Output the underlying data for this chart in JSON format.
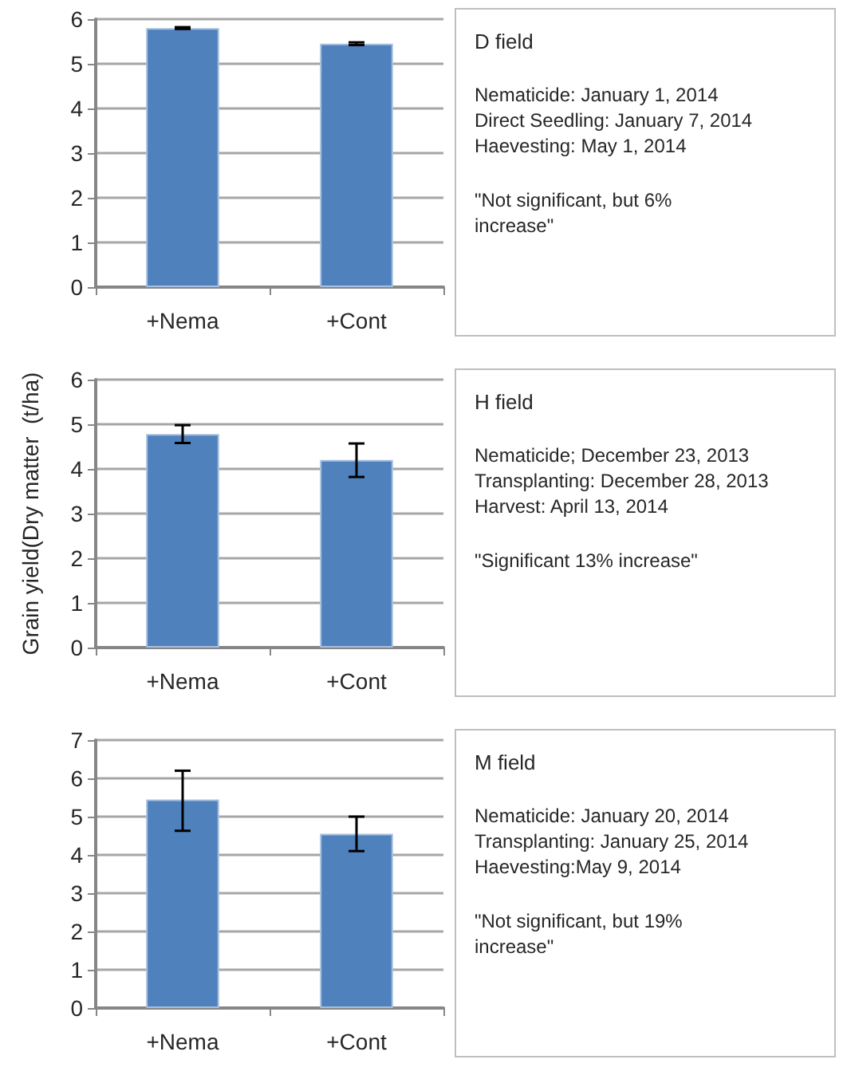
{
  "chart_data": [
    {
      "type": "bar",
      "categories": [
        "+Nema",
        "+Cont"
      ],
      "values": [
        5.8,
        5.45
      ],
      "errors": [
        [
          5.78,
          5.82
        ],
        [
          5.42,
          5.48
        ]
      ],
      "color": "#4f81bd",
      "ylim": [
        0,
        6
      ],
      "yticks": [
        0,
        1,
        2,
        3,
        4,
        5,
        6
      ],
      "grid": "y"
    },
    {
      "type": "other",
      "title": "D field",
      "annotations": [
        "Nematicide: January 1, 2014",
        "Direct Seedling: January 7, 2014",
        "Haevesting: May 1, 2014",
        "\"Not significant, but 6% increase\""
      ]
    },
    {
      "type": "bar",
      "ylabel": "Grain yield(Dry matter  (t/ha)",
      "categories": [
        "+Nema",
        "+Cont"
      ],
      "values": [
        4.78,
        4.2
      ],
      "errors": [
        [
          4.58,
          4.98
        ],
        [
          3.82,
          4.57
        ]
      ],
      "color": "#4f81bd",
      "ylim": [
        0,
        6
      ],
      "yticks": [
        0,
        1,
        2,
        3,
        4,
        5,
        6
      ],
      "grid": "y"
    },
    {
      "type": "other",
      "title": "H field",
      "annotations": [
        "Nematicide; December 23, 2013",
        "Transplanting: December 28, 2013",
        "Harvest: April 13, 2014",
        "\"Significant 13% increase\""
      ]
    },
    {
      "type": "bar",
      "categories": [
        "+Nema",
        "+Cont"
      ],
      "values": [
        5.45,
        4.55
      ],
      "errors": [
        [
          4.63,
          6.2
        ],
        [
          4.1,
          5.0
        ]
      ],
      "color": "#4f81bd",
      "ylim": [
        0,
        7
      ],
      "yticks": [
        0,
        1,
        2,
        3,
        4,
        5,
        6,
        7
      ],
      "grid": "y"
    },
    {
      "type": "other",
      "title": "M field",
      "annotations": [
        "Nematicide: January 20, 2014",
        "Transplanting: January 25, 2014",
        "Haevesting:May 9, 2014",
        "\"Not significant, but 19% increase\""
      ]
    }
  ]
}
